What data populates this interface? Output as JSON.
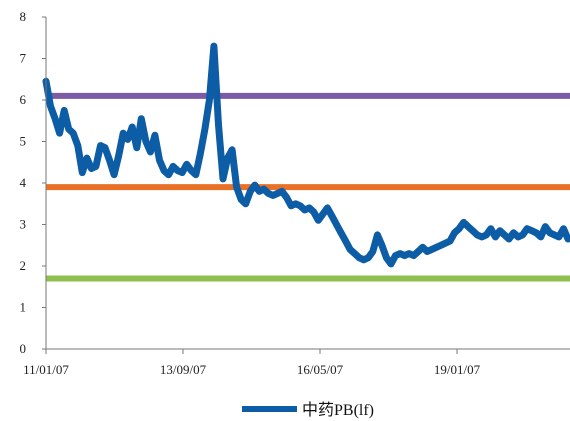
{
  "chart_data": {
    "type": "line",
    "title": "",
    "xlabel": "",
    "ylabel": "",
    "ylim": [
      0,
      8
    ],
    "y_ticks": [
      "0",
      "1",
      "2",
      "3",
      "4",
      "5",
      "6",
      "7",
      "8"
    ],
    "x_ticks": [
      "11/01/07",
      "13/09/07",
      "16/05/07",
      "19/01/07"
    ],
    "grid": false,
    "legend_position": "bottom-center",
    "colors": {
      "series": "#0d5ca6",
      "upper_band": "#7b5aa6",
      "mean": "#e87127",
      "lower_band": "#8fc04f",
      "axis": "#777777"
    },
    "series": [
      {
        "name": "中药PB(lf)",
        "x": [
          0,
          1,
          2,
          3,
          4,
          5,
          6,
          7,
          8,
          9,
          10,
          11,
          12,
          13,
          14,
          15,
          16,
          17,
          18,
          19,
          20,
          21,
          22,
          23,
          24,
          25,
          26,
          27,
          28,
          29,
          30,
          31,
          32,
          33,
          34,
          35,
          36,
          37,
          38,
          39,
          40,
          41,
          42,
          43,
          44,
          45,
          46,
          47,
          48,
          49,
          50,
          51,
          52,
          53,
          54,
          55,
          56,
          57,
          58,
          59,
          60,
          61,
          62,
          63,
          64,
          65,
          66,
          67,
          68,
          69,
          70,
          71,
          72,
          73,
          74,
          75,
          76,
          77,
          78,
          79,
          80,
          81,
          82,
          83,
          84,
          85,
          86,
          87,
          88,
          89,
          90,
          91,
          92,
          93,
          94,
          95,
          96,
          97,
          98,
          99,
          100,
          101,
          102,
          103,
          104,
          105,
          106,
          107,
          108,
          109,
          110,
          111,
          112,
          113,
          114,
          115
        ],
        "values": [
          6.45,
          5.85,
          5.55,
          5.2,
          5.75,
          5.3,
          5.2,
          4.9,
          4.25,
          4.6,
          4.35,
          4.4,
          4.9,
          4.85,
          4.55,
          4.2,
          4.65,
          5.2,
          5.05,
          5.35,
          4.85,
          5.55,
          5.0,
          4.75,
          5.15,
          4.55,
          4.3,
          4.2,
          4.4,
          4.3,
          4.25,
          4.45,
          4.3,
          4.2,
          4.7,
          5.3,
          6.0,
          7.3,
          5.4,
          4.1,
          4.6,
          4.8,
          3.9,
          3.6,
          3.5,
          3.8,
          3.95,
          3.8,
          3.85,
          3.75,
          3.7,
          3.75,
          3.8,
          3.65,
          3.45,
          3.5,
          3.45,
          3.35,
          3.4,
          3.3,
          3.1,
          3.25,
          3.4,
          3.2,
          3.0,
          2.8,
          2.6,
          2.4,
          2.3,
          2.2,
          2.15,
          2.2,
          2.35,
          2.75,
          2.5,
          2.2,
          2.05,
          2.25,
          2.3,
          2.25,
          2.3,
          2.25,
          2.35,
          2.45,
          2.35,
          2.4,
          2.45,
          2.5,
          2.55,
          2.6,
          2.8,
          2.9,
          3.05,
          2.95,
          2.85,
          2.75,
          2.7,
          2.75,
          2.9,
          2.7,
          2.85,
          2.75,
          2.65,
          2.8,
          2.7,
          2.75,
          2.9,
          2.85,
          2.8,
          2.7,
          2.95,
          2.8,
          2.75,
          2.7,
          2.9,
          2.65
        ]
      }
    ],
    "reference_lines": [
      {
        "value": 6.1
      },
      {
        "value": 3.9
      },
      {
        "value": 1.7
      }
    ]
  }
}
